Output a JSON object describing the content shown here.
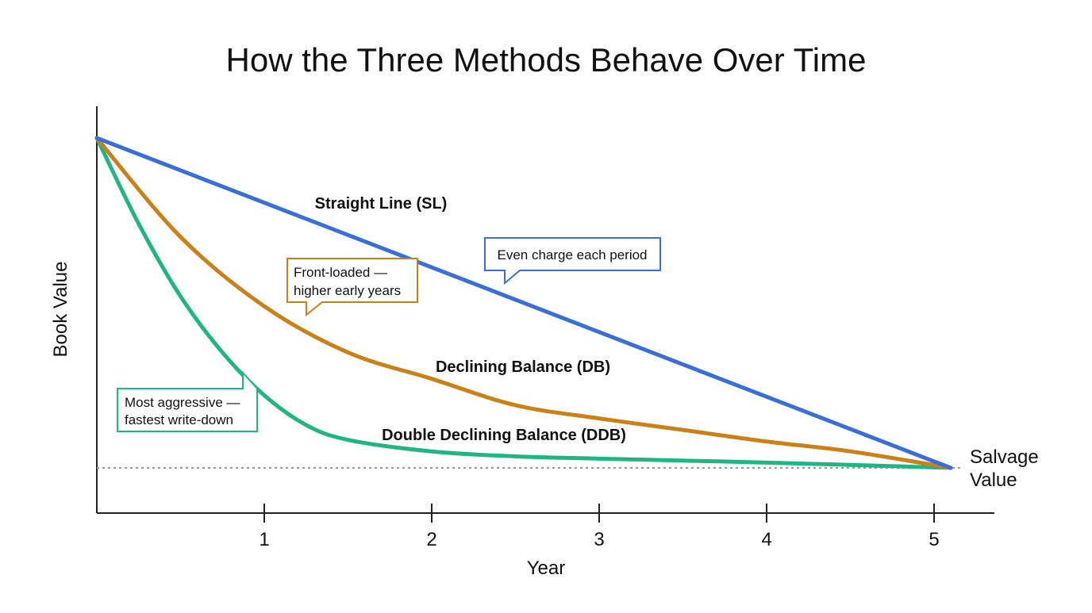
{
  "chart_data": {
    "type": "line",
    "title": "How the Three Methods Behave Over Time",
    "xlabel": "Year",
    "ylabel": "Book Value",
    "xlim": [
      0,
      5.3
    ],
    "ylim": [
      0,
      100
    ],
    "x_ticks": [
      1,
      2,
      3,
      4,
      5
    ],
    "grid": false,
    "legend": "none (series labeled directly on lines)",
    "colors": {
      "sl": "#3b6fd8",
      "db": "#c98118",
      "ddb": "#1fb585",
      "axis": "#222222",
      "salvage_line": "#9a9a9a"
    },
    "series": [
      {
        "key": "sl",
        "name": "Straight Line (SL)",
        "x": [
          0,
          5.1
        ],
        "y": [
          100,
          0
        ]
      },
      {
        "key": "db",
        "name": "Declining Balance (DB)",
        "x": [
          0,
          0.5,
          1,
          1.5,
          2,
          2.5,
          3,
          3.5,
          4,
          4.5,
          5.1
        ],
        "y": [
          100,
          70,
          49,
          35,
          27,
          19,
          15,
          11.5,
          8,
          5,
          0
        ]
      },
      {
        "key": "ddb",
        "name": "Double Declining Balance (DDB)",
        "x": [
          0,
          0.25,
          0.5,
          0.75,
          1,
          1.25,
          1.5,
          2,
          2.5,
          3,
          4,
          5.1
        ],
        "y": [
          100,
          74,
          52,
          35,
          22,
          13,
          8.5,
          5,
          3.5,
          2.8,
          1.6,
          0
        ]
      }
    ],
    "salvage": {
      "y": 0,
      "label_line1": "Salvage",
      "label_line2": "Value"
    },
    "annotations": [
      {
        "key": "sl_callout",
        "series": "sl",
        "lines": [
          "Even charge each period"
        ]
      },
      {
        "key": "db_callout",
        "series": "db",
        "lines": [
          "Front-loaded —",
          "higher early years"
        ]
      },
      {
        "key": "ddb_callout",
        "series": "ddb",
        "lines": [
          "Most aggressive —",
          "fastest write-down"
        ]
      }
    ]
  }
}
